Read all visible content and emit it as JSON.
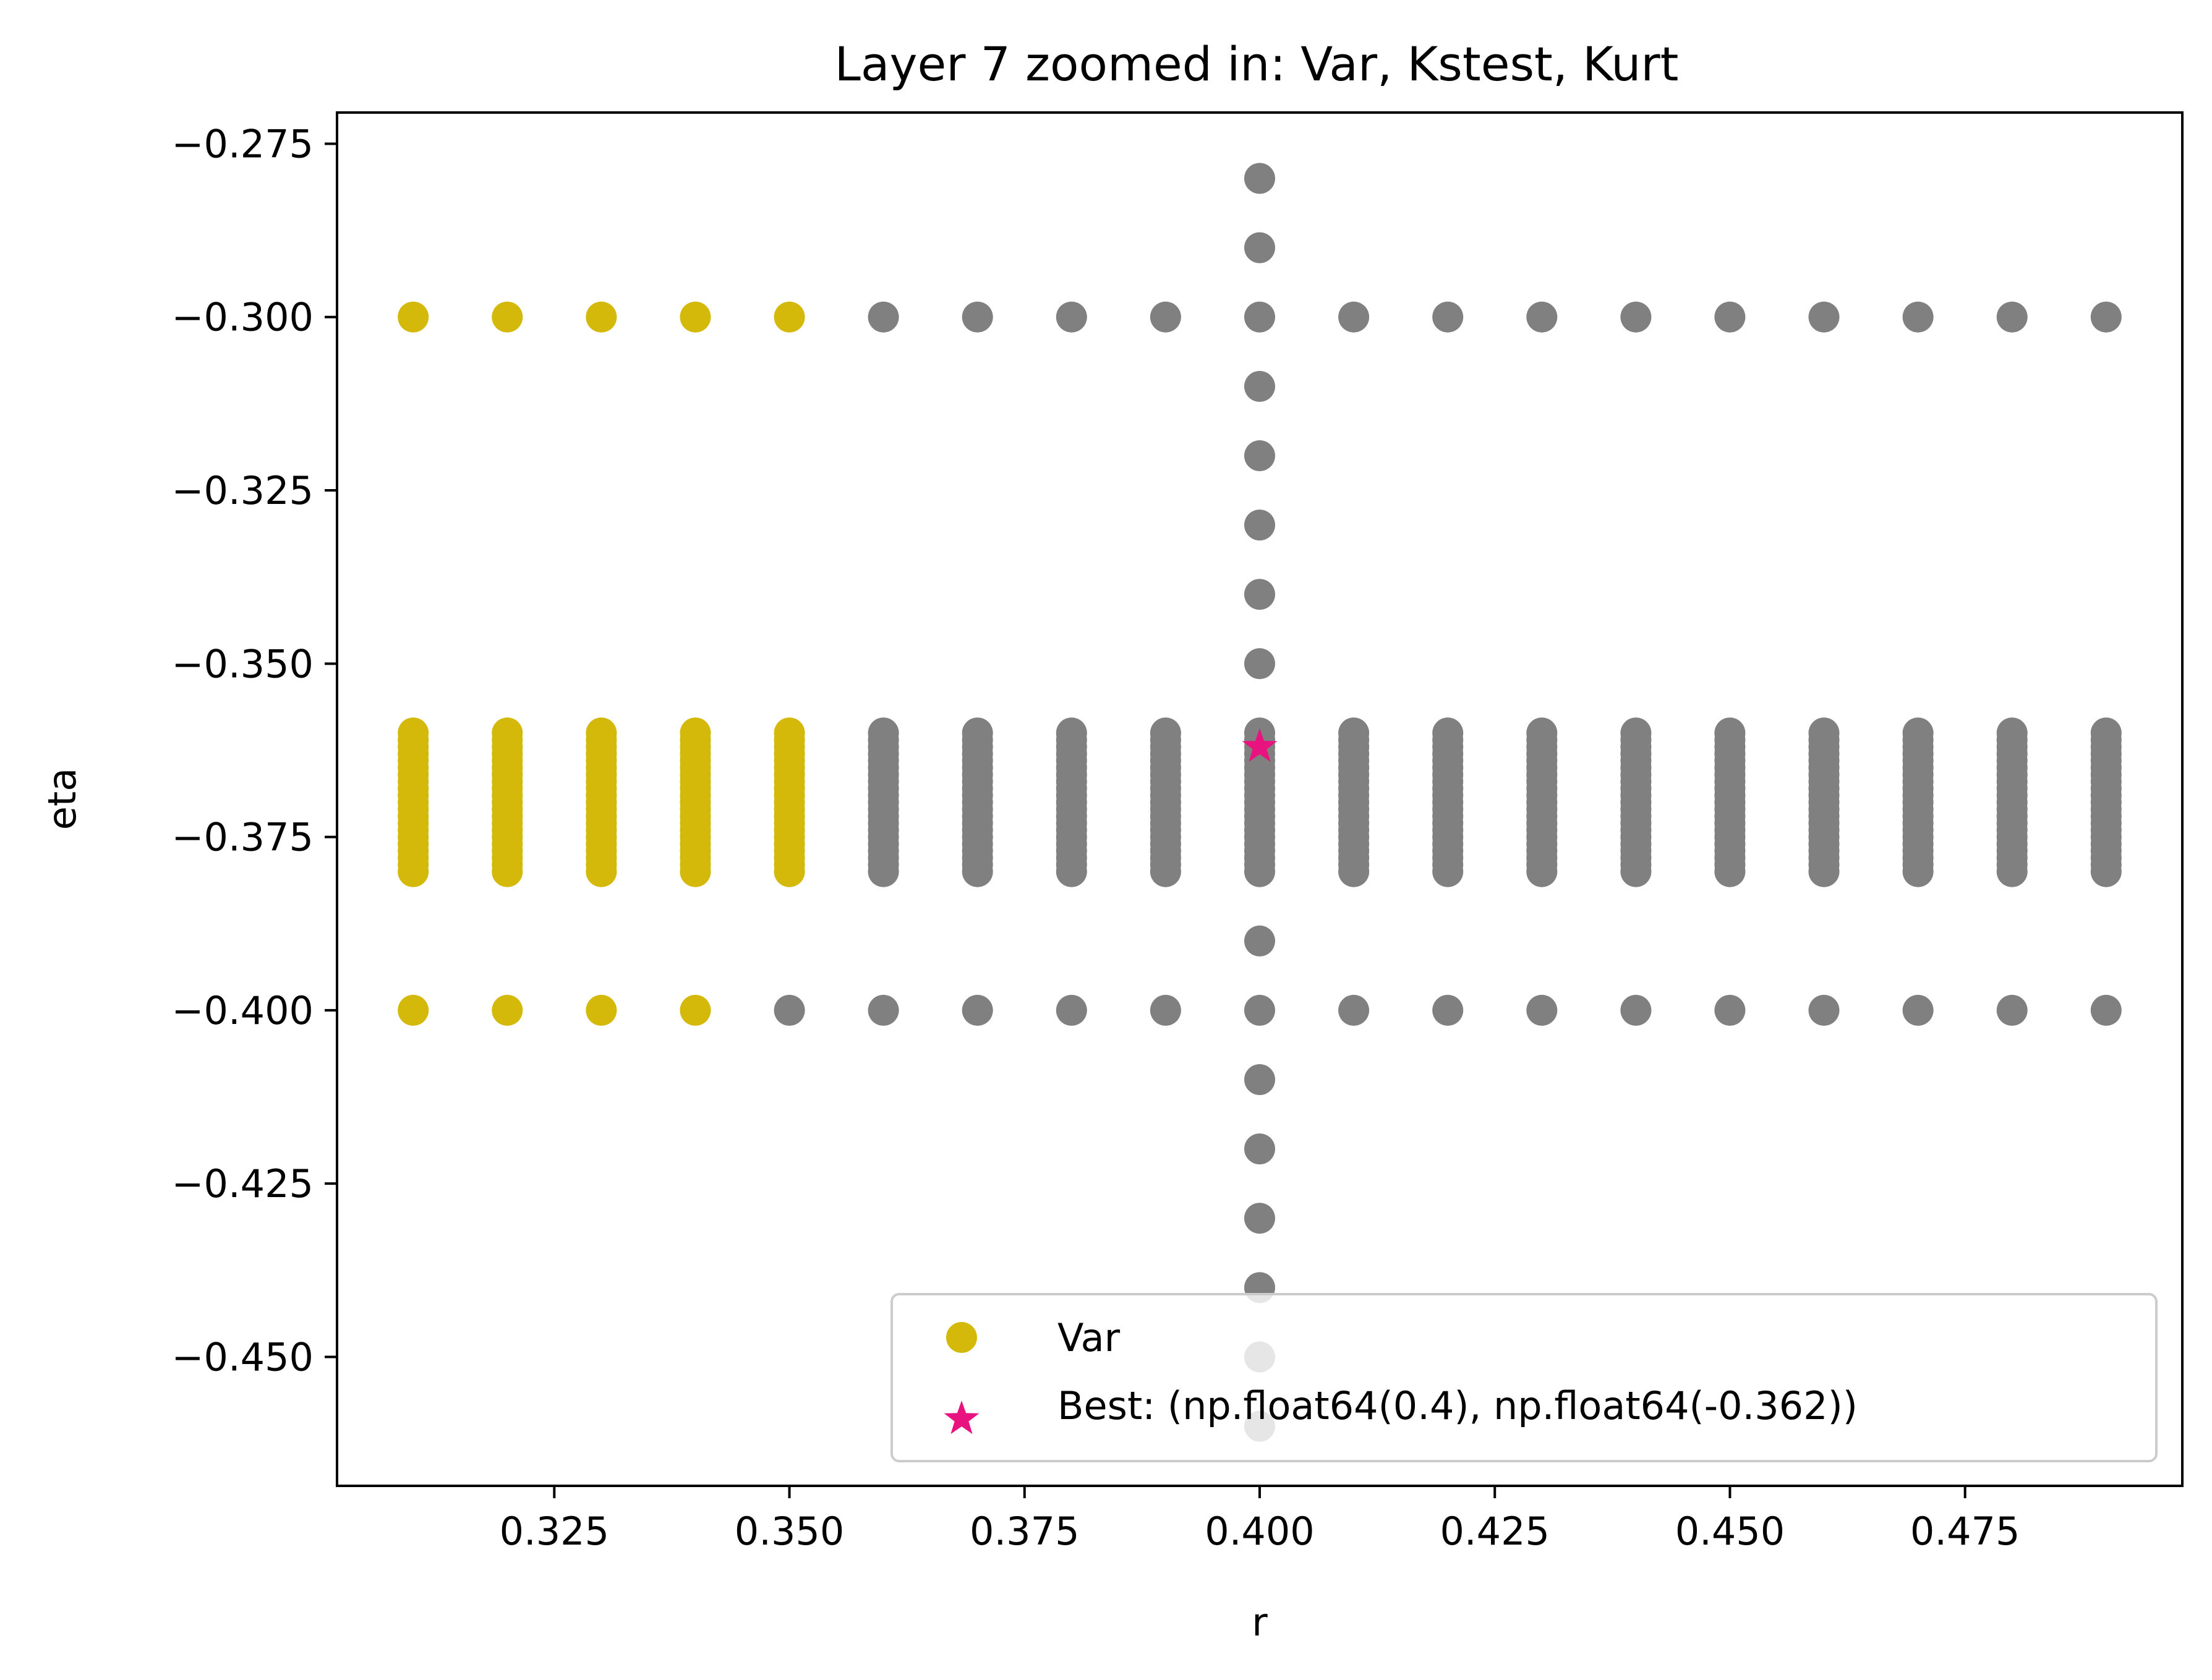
{
  "chart_data": {
    "type": "scatter",
    "title": "Layer 7 zoomed in: Var, Kstest, Kurt",
    "xlabel": "r",
    "ylabel": "eta",
    "xlim": [
      0.3019,
      0.4981
    ],
    "ylim": [
      -0.4686,
      -0.2705
    ],
    "xticks": [
      0.325,
      0.35,
      0.375,
      0.4,
      0.425,
      0.45,
      0.475
    ],
    "xtick_labels": [
      "0.325",
      "0.350",
      "0.375",
      "0.400",
      "0.425",
      "0.450",
      "0.475"
    ],
    "yticks": [
      -0.275,
      -0.3,
      -0.325,
      -0.35,
      -0.375,
      -0.4,
      -0.425,
      -0.45
    ],
    "ytick_labels": [
      "−0.275",
      "−0.300",
      "−0.325",
      "−0.350",
      "−0.375",
      "−0.400",
      "−0.425",
      "−0.450"
    ],
    "grid": false,
    "legend_placement": "lower-right",
    "colors": {
      "var": "#d4b80a",
      "other": "#808080",
      "best": "#e8137f"
    },
    "r_values": [
      0.31,
      0.32,
      0.33,
      0.34,
      0.35,
      0.36,
      0.37,
      0.38,
      0.39,
      0.4,
      0.41,
      0.42,
      0.43,
      0.44,
      0.45,
      0.46,
      0.47,
      0.48,
      0.49
    ],
    "dense_eta_range": [
      -0.38,
      -0.36
    ],
    "dense_eta_step": 0.001,
    "row_eta_values": [
      -0.3,
      -0.4
    ],
    "center_column_r": 0.4,
    "center_column_eta": [
      -0.28,
      -0.29,
      -0.31,
      -0.32,
      -0.33,
      -0.34,
      -0.35,
      -0.39,
      -0.41,
      -0.42,
      -0.43,
      -0.44,
      -0.45,
      -0.46
    ],
    "var_r_max_dense": 0.35,
    "var_r_max_row_top": 0.35,
    "var_r_max_row_bottom": 0.34,
    "series": [
      {
        "name": "Var"
      },
      {
        "name": "Best: (np.float64(0.4), np.float64(-0.362))",
        "x": 0.4,
        "y": -0.362
      }
    ]
  }
}
